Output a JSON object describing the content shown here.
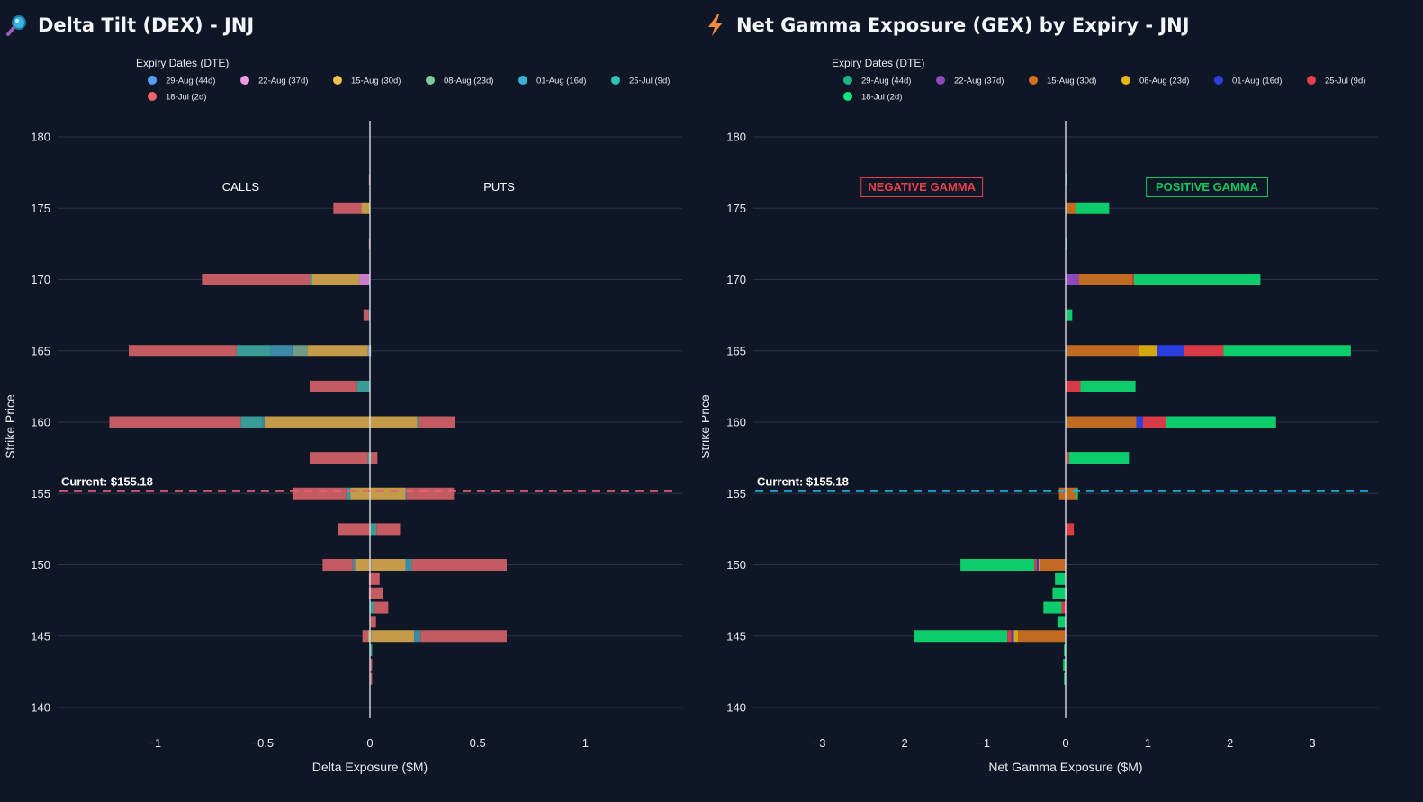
{
  "chart_data": [
    {
      "type": "bar",
      "orientation": "horizontal",
      "stacked": true,
      "title": "Delta Tilt (DEX) - JNJ",
      "title_icon": "magnifier-icon",
      "xlabel": "Delta Exposure ($M)",
      "ylabel": "Strike Price",
      "xlim": [
        -1.45,
        1.45
      ],
      "ylim": [
        139,
        181
      ],
      "xticks": [
        -1,
        -0.5,
        0,
        0.5,
        1
      ],
      "xtick_labels": [
        "−1",
        "−0.5",
        "0",
        "0.5",
        "1"
      ],
      "yticks": [
        140,
        145,
        150,
        155,
        160,
        165,
        170,
        175,
        180
      ],
      "legend_title": "Expiry Dates (DTE)",
      "legend_position": "top",
      "current_price": 155.18,
      "current_label": "Current: $155.18",
      "current_line_color": "#e8607a",
      "annotations": [
        {
          "text": "CALLS",
          "x": -0.6,
          "y": 176.5,
          "color": "#ffffff",
          "boxed": false
        },
        {
          "text": "PUTS",
          "x": 0.6,
          "y": 176.5,
          "color": "#ffffff",
          "boxed": false
        }
      ],
      "series": [
        {
          "name": "29-Aug (44d)",
          "legend_color": "#5a9cf5",
          "bar_color": "#6b8fd4"
        },
        {
          "name": "22-Aug (37d)",
          "legend_color": "#f09ae8",
          "bar_color": "#c77dc8"
        },
        {
          "name": "15-Aug (30d)",
          "legend_color": "#f2c14e",
          "bar_color": "#c49b48"
        },
        {
          "name": "08-Aug (23d)",
          "legend_color": "#7ecba1",
          "bar_color": "#6e9a86"
        },
        {
          "name": "01-Aug (16d)",
          "legend_color": "#3ab0d8",
          "bar_color": "#3a8aa8"
        },
        {
          "name": "25-Jul (9d)",
          "legend_color": "#2fc5b0",
          "bar_color": "#3a9a96"
        },
        {
          "name": "18-Jul (2d)",
          "legend_color": "#f06468",
          "bar_color": "#c45a62"
        }
      ],
      "bars": [
        {
          "strike": 177,
          "neg": [
            0,
            0,
            0,
            0,
            0,
            0,
            -0.005
          ],
          "pos": [
            0,
            0,
            0,
            0,
            0,
            0,
            0
          ]
        },
        {
          "strike": 175,
          "neg": [
            0,
            0,
            -0.04,
            0,
            0,
            0,
            -0.13
          ],
          "pos": [
            0,
            0,
            0,
            0,
            0,
            0,
            0
          ]
        },
        {
          "strike": 172.5,
          "neg": [
            0,
            0,
            0,
            0,
            0,
            0,
            -0.005
          ],
          "pos": [
            0,
            0,
            0,
            0,
            0,
            0,
            0
          ]
        },
        {
          "strike": 170,
          "neg": [
            0,
            -0.05,
            -0.22,
            0,
            -0.005,
            -0.005,
            -0.5
          ],
          "pos": [
            0,
            0,
            0,
            0,
            0,
            0,
            0
          ]
        },
        {
          "strike": 167.5,
          "neg": [
            0,
            0,
            0,
            0,
            0,
            -0.005,
            -0.025
          ],
          "pos": [
            0,
            0,
            0,
            0,
            0,
            0,
            0
          ]
        },
        {
          "strike": 165,
          "neg": [
            -0.01,
            0,
            -0.28,
            -0.07,
            -0.1,
            -0.16,
            -0.5
          ],
          "pos": [
            0,
            0,
            0.005,
            0,
            0,
            0,
            0
          ]
        },
        {
          "strike": 162.5,
          "neg": [
            0,
            0,
            0,
            0,
            0,
            -0.06,
            -0.22
          ],
          "pos": [
            0,
            0,
            0,
            0,
            0,
            0,
            0
          ]
        },
        {
          "strike": 160,
          "neg": [
            0,
            0,
            -0.49,
            0,
            -0.01,
            -0.1,
            -0.61
          ],
          "pos": [
            0,
            0,
            0.22,
            0,
            0,
            0.005,
            0.17
          ]
        },
        {
          "strike": 157.5,
          "neg": [
            0,
            0,
            0,
            0,
            0,
            -0.01,
            -0.27
          ],
          "pos": [
            0,
            0,
            0,
            0,
            0,
            0,
            0.035
          ]
        },
        {
          "strike": 155,
          "neg": [
            0,
            0,
            -0.09,
            0,
            0,
            -0.02,
            -0.25
          ],
          "pos": [
            0,
            0,
            0.165,
            0,
            0.005,
            0,
            0.22
          ]
        },
        {
          "strike": 152.5,
          "neg": [
            0,
            0,
            0,
            0,
            0,
            0,
            -0.15
          ],
          "pos": [
            0,
            0,
            0,
            0,
            0,
            0.03,
            0.11
          ]
        },
        {
          "strike": 150,
          "neg": [
            0,
            0,
            -0.07,
            0,
            -0.01,
            0,
            -0.14
          ],
          "pos": [
            0.005,
            0,
            0.16,
            0,
            0.015,
            0.015,
            0.44
          ]
        },
        {
          "strike": 149,
          "neg": [
            0,
            0,
            0,
            0,
            0,
            0,
            -0.005
          ],
          "pos": [
            0,
            0,
            0,
            0,
            0,
            0,
            0.045
          ]
        },
        {
          "strike": 148,
          "neg": [
            0,
            0,
            0,
            0,
            0,
            0,
            -0.005
          ],
          "pos": [
            0,
            0,
            0,
            0,
            0,
            0,
            0.06
          ]
        },
        {
          "strike": 147,
          "neg": [
            0,
            0,
            0,
            0,
            0,
            0,
            0
          ],
          "pos": [
            0,
            0,
            0,
            0,
            0,
            0.02,
            0.065
          ]
        },
        {
          "strike": 146,
          "neg": [
            0,
            0,
            0,
            0,
            0,
            0,
            0
          ],
          "pos": [
            0,
            0,
            0,
            0,
            0,
            0,
            0.028
          ]
        },
        {
          "strike": 145,
          "neg": [
            0,
            0,
            -0.01,
            0,
            0,
            0,
            -0.025
          ],
          "pos": [
            0.005,
            0,
            0.2,
            0,
            0.025,
            0.005,
            0.4
          ]
        },
        {
          "strike": 144,
          "neg": [
            0,
            0,
            0,
            0,
            0,
            0,
            0
          ],
          "pos": [
            0,
            0,
            0,
            0,
            0,
            0.01,
            0
          ]
        },
        {
          "strike": 143,
          "neg": [
            0,
            0,
            0,
            0,
            0,
            0,
            0
          ],
          "pos": [
            0,
            0,
            0,
            0,
            0,
            0,
            0.01
          ]
        },
        {
          "strike": 142,
          "neg": [
            0,
            0,
            0,
            0,
            0,
            0,
            0
          ],
          "pos": [
            0,
            0,
            0,
            0,
            0,
            0,
            0.01
          ]
        }
      ]
    },
    {
      "type": "bar",
      "orientation": "horizontal",
      "stacked": true,
      "title": "Net Gamma Exposure (GEX) by Expiry - JNJ",
      "title_icon": "lightning-icon",
      "xlabel": "Net Gamma Exposure ($M)",
      "ylabel": "Strike Price",
      "xlim": [
        -3.8,
        3.8
      ],
      "ylim": [
        139,
        181
      ],
      "xticks": [
        -3,
        -2,
        -1,
        0,
        1,
        2,
        3
      ],
      "xtick_labels": [
        "−3",
        "−2",
        "−1",
        "0",
        "1",
        "2",
        "3"
      ],
      "yticks": [
        140,
        145,
        150,
        155,
        160,
        165,
        170,
        175,
        180
      ],
      "legend_title": "Expiry Dates (DTE)",
      "legend_position": "top",
      "current_price": 155.18,
      "current_label": "Current: $155.18",
      "current_line_color": "#1eb4e6",
      "annotations": [
        {
          "text": "NEGATIVE GAMMA",
          "x": -1.75,
          "y": 176.5,
          "color": "#e8404a",
          "boxed": true
        },
        {
          "text": "POSITIVE GAMMA",
          "x": 1.72,
          "y": 176.5,
          "color": "#10c860",
          "boxed": true
        }
      ],
      "series": [
        {
          "name": "29-Aug (44d)",
          "legend_color": "#1bb38a",
          "bar_color": "#1bb38a"
        },
        {
          "name": "22-Aug (37d)",
          "legend_color": "#8e4ab8",
          "bar_color": "#8e4ab8"
        },
        {
          "name": "15-Aug (30d)",
          "legend_color": "#d2701e",
          "bar_color": "#c06a22"
        },
        {
          "name": "08-Aug (23d)",
          "legend_color": "#e8b612",
          "bar_color": "#d2a80e"
        },
        {
          "name": "01-Aug (16d)",
          "legend_color": "#2b3fe0",
          "bar_color": "#2b3fe0"
        },
        {
          "name": "25-Jul (9d)",
          "legend_color": "#e8404a",
          "bar_color": "#d83a48"
        },
        {
          "name": "18-Jul (2d)",
          "legend_color": "#10e878",
          "bar_color": "#0dcc6c"
        }
      ],
      "bars": [
        {
          "strike": 177,
          "neg": [
            0,
            0,
            0,
            0,
            0,
            0,
            0
          ],
          "pos": [
            0,
            0,
            0,
            0,
            0,
            0,
            0.01
          ]
        },
        {
          "strike": 175,
          "neg": [
            0,
            0,
            0,
            0,
            0,
            0,
            0
          ],
          "pos": [
            0,
            0,
            0.13,
            0,
            0,
            0,
            0.4
          ]
        },
        {
          "strike": 172.5,
          "neg": [
            0,
            0,
            0,
            0,
            0,
            0,
            0
          ],
          "pos": [
            0,
            0,
            0,
            0,
            0,
            0,
            0.01
          ]
        },
        {
          "strike": 170,
          "neg": [
            0,
            0,
            0,
            0,
            0,
            0,
            0
          ],
          "pos": [
            0,
            0.16,
            0.65,
            0,
            0,
            0.02,
            1.54
          ]
        },
        {
          "strike": 167.5,
          "neg": [
            0,
            0,
            0,
            0,
            0,
            0,
            0
          ],
          "pos": [
            0,
            0,
            0,
            0,
            0,
            0.01,
            0.07
          ]
        },
        {
          "strike": 165,
          "neg": [
            0,
            0,
            0,
            0,
            0,
            0,
            0
          ],
          "pos": [
            0.01,
            0,
            0.88,
            0.22,
            0.33,
            0.48,
            1.55
          ]
        },
        {
          "strike": 162.5,
          "neg": [
            0,
            0,
            0,
            0,
            0,
            0,
            0
          ],
          "pos": [
            0,
            0,
            0,
            0,
            0,
            0.18,
            0.67
          ]
        },
        {
          "strike": 160,
          "neg": [
            0,
            0,
            0,
            0,
            0,
            0,
            0
          ],
          "pos": [
            0.01,
            0,
            0.85,
            0,
            0.08,
            0.28,
            1.34
          ]
        },
        {
          "strike": 157.5,
          "neg": [
            0,
            0,
            0,
            0,
            0,
            0,
            0
          ],
          "pos": [
            0,
            0,
            0,
            0,
            0,
            0.04,
            0.73
          ]
        },
        {
          "strike": 155,
          "neg": [
            0,
            0,
            -0.08,
            0,
            0,
            0,
            0
          ],
          "pos": [
            0,
            0,
            0.13,
            0,
            0,
            0,
            0.02
          ]
        },
        {
          "strike": 152.5,
          "neg": [
            0,
            0,
            0,
            0,
            0,
            0,
            0
          ],
          "pos": [
            0,
            0,
            0,
            0,
            0,
            0.1,
            0
          ]
        },
        {
          "strike": 150,
          "neg": [
            0,
            0,
            -0.31,
            -0.02,
            -0.02,
            -0.03,
            -0.9
          ],
          "pos": [
            0,
            0,
            0,
            0,
            0,
            0,
            0
          ]
        },
        {
          "strike": 149,
          "neg": [
            0,
            0,
            0,
            0,
            0,
            0,
            -0.13
          ],
          "pos": [
            0,
            0,
            0,
            0,
            0,
            0,
            0
          ]
        },
        {
          "strike": 148,
          "neg": [
            0,
            0,
            0,
            0,
            0,
            0.02,
            -0.18
          ],
          "pos": [
            0,
            0,
            0,
            0,
            0,
            0,
            0
          ]
        },
        {
          "strike": 147,
          "neg": [
            0,
            0,
            0,
            0,
            0,
            -0.05,
            -0.22
          ],
          "pos": [
            0,
            0,
            0,
            0,
            0,
            0,
            0
          ]
        },
        {
          "strike": 146,
          "neg": [
            0,
            0,
            0,
            0,
            0,
            0,
            -0.1
          ],
          "pos": [
            0,
            0,
            0,
            0,
            0,
            0,
            0
          ]
        },
        {
          "strike": 145,
          "neg": [
            0,
            0,
            -0.58,
            -0.05,
            -0.03,
            -0.05,
            -1.13
          ],
          "pos": [
            0,
            0,
            0,
            0,
            0,
            0,
            0
          ]
        },
        {
          "strike": 144,
          "neg": [
            0,
            0,
            0,
            0,
            0,
            0,
            -0.02
          ],
          "pos": [
            0,
            0,
            0,
            0,
            0,
            0,
            0
          ]
        },
        {
          "strike": 143,
          "neg": [
            0,
            0,
            0,
            0,
            0,
            0,
            -0.03
          ],
          "pos": [
            0,
            0,
            0,
            0,
            0,
            0,
            0
          ]
        },
        {
          "strike": 142,
          "neg": [
            0,
            0,
            0,
            0,
            0,
            0,
            -0.02
          ],
          "pos": [
            0,
            0,
            0,
            0,
            0,
            0,
            0
          ]
        }
      ]
    }
  ]
}
